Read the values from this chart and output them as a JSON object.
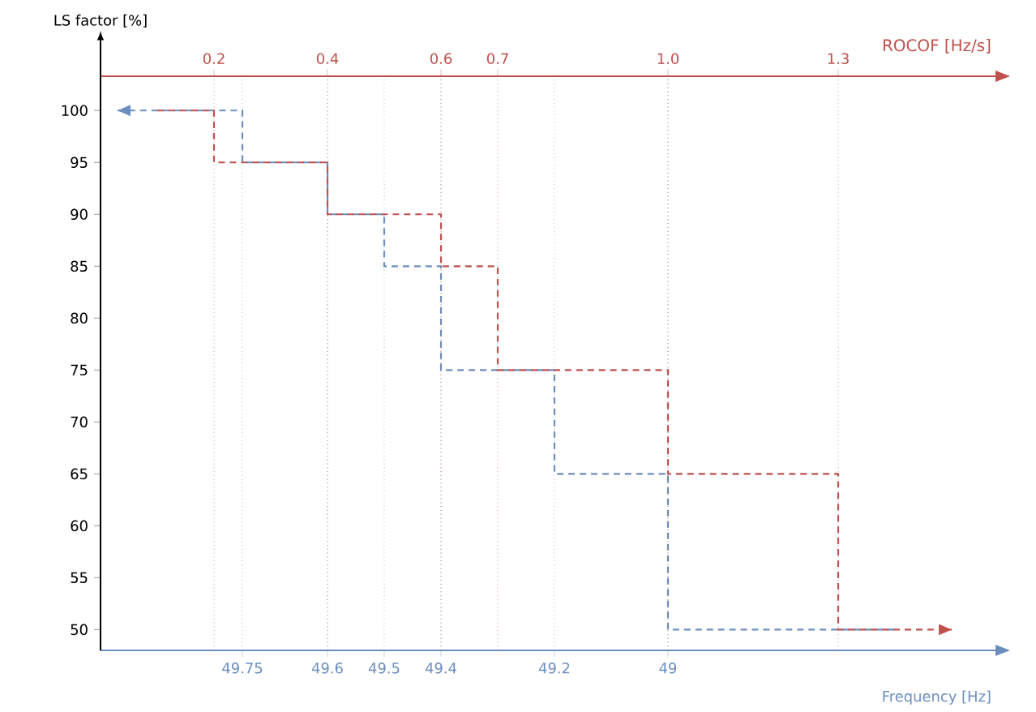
{
  "chart_data": {
    "type": "step",
    "xlabel": "Frequency [Hz]",
    "ylabel": "LS factor [%]",
    "x2label": "ROCOF [Hz/s]",
    "xlim": [
      50,
      48.42
    ],
    "xticks": [
      49.75,
      49.6,
      49.5,
      49.4,
      49.2,
      49
    ],
    "x2lim": [
      0,
      1.58
    ],
    "x2ticks": [
      0.2,
      0.4,
      0.6,
      0.7,
      {
        "value": 1.0,
        "label": "1.0"
      },
      1.3
    ],
    "ylim": [
      48,
      103.3
    ],
    "yticks": [
      50,
      55,
      60,
      65,
      70,
      75,
      80,
      85,
      90,
      95,
      100
    ],
    "grid": "x",
    "line_style": "dashed",
    "series": [
      {
        "color": "#6c8ebf",
        "x": [
          49.97,
          49.75,
          49.6,
          49.5,
          49.4,
          49.2,
          49.0,
          48.6
        ],
        "values": [
          100,
          95,
          90,
          85,
          75,
          65,
          50,
          50
        ]
      },
      {
        "color": "#c0504d",
        "axis": "x2",
        "x": [
          0.1,
          0.2,
          0.4,
          0.6,
          0.7,
          1.0,
          1.3,
          1.5
        ],
        "values": [
          100,
          95,
          90,
          85,
          75,
          65,
          50,
          50
        ]
      }
    ]
  }
}
